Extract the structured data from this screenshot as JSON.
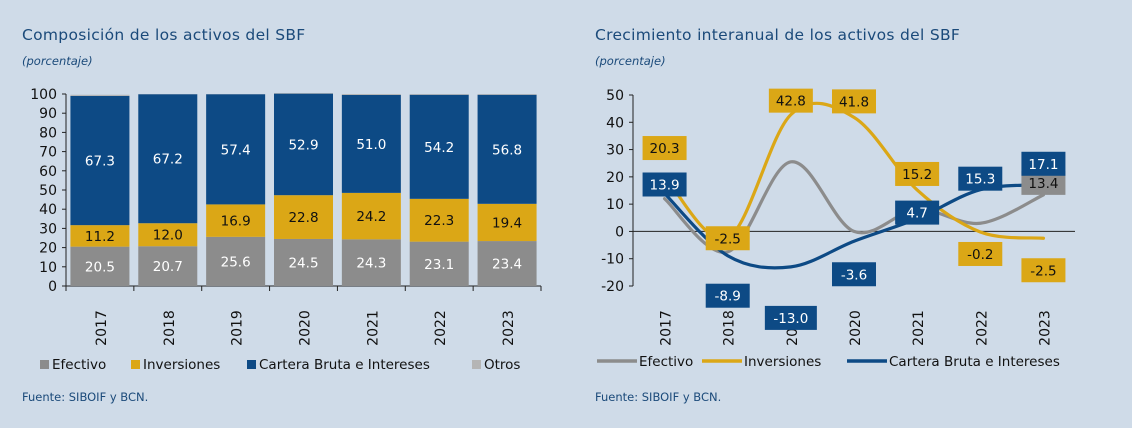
{
  "charts": {
    "left": {
      "title": "Composición de los activos del SBF",
      "subtitle": "(porcentaje)",
      "source": "Fuente: SIBOIF y BCN."
    },
    "right": {
      "title": "Crecimiento interanual de los activos del SBF",
      "subtitle": "(porcentaje)",
      "source": "Fuente: SIBOIF y BCN."
    }
  },
  "colors": {
    "efectivo": "#8c8c8c",
    "inversiones": "#dba716",
    "cartera": "#0d4a85",
    "otros": "#b5b5b5",
    "background": "#cfdbe8"
  },
  "chart_data": [
    {
      "type": "bar",
      "stacked": true,
      "title": "Composición de los activos del SBF",
      "subtitle": "(porcentaje)",
      "categories": [
        "2017",
        "2018",
        "2019",
        "2020",
        "2021",
        "2022",
        "2023"
      ],
      "series": [
        {
          "name": "Efectivo",
          "values": [
            20.5,
            20.7,
            25.6,
            24.5,
            24.3,
            23.1,
            23.4
          ],
          "color": "#8c8c8c"
        },
        {
          "name": "Inversiones",
          "values": [
            11.2,
            12.0,
            16.9,
            22.8,
            24.2,
            22.3,
            19.4
          ],
          "color": "#dba716"
        },
        {
          "name": "Cartera Bruta e Intereses",
          "values": [
            67.3,
            67.2,
            57.4,
            52.9,
            51.0,
            54.2,
            56.8
          ],
          "color": "#0d4a85"
        },
        {
          "name": "Otros",
          "values": [
            0.6,
            0.1,
            0.1,
            0.3,
            0.5,
            0.4,
            0.4
          ],
          "color": "#b5b5b5"
        }
      ],
      "ylim": [
        0,
        100
      ],
      "yticks": [
        0,
        10,
        20,
        30,
        40,
        50,
        60,
        70,
        80,
        90,
        100
      ],
      "legend": "bottom",
      "grid": false
    },
    {
      "type": "line",
      "title": "Crecimiento interanual de los activos del SBF",
      "subtitle": "(porcentaje)",
      "categories": [
        "2017",
        "2018",
        "2019",
        "2020",
        "2021",
        "2022",
        "2023"
      ],
      "series": [
        {
          "name": "Efectivo",
          "values": [
            12.0,
            -7.5,
            25.5,
            0.0,
            8.0,
            3.0,
            13.4
          ],
          "color": "#8c8c8c",
          "labels": [
            null,
            null,
            null,
            null,
            null,
            null,
            "13.4"
          ]
        },
        {
          "name": "Inversiones",
          "values": [
            20.3,
            -2.5,
            42.8,
            41.8,
            15.2,
            -0.2,
            -2.5
          ],
          "color": "#dba716",
          "labels": [
            "20.3",
            "-2.5",
            "42.8",
            "41.8",
            "15.2",
            "-0.2",
            "-2.5"
          ]
        },
        {
          "name": "Cartera Bruta e Intereses",
          "values": [
            13.9,
            -8.9,
            -13.0,
            -3.6,
            4.7,
            15.3,
            17.1
          ],
          "color": "#0d4a85",
          "labels": [
            "13.9",
            "-8.9",
            "-13.0",
            "-3.6",
            "4.7",
            "15.3",
            "17.1"
          ]
        }
      ],
      "ylim": [
        -20,
        50
      ],
      "yticks": [
        -20,
        -10,
        0,
        10,
        20,
        30,
        40,
        50
      ],
      "legend": "bottom",
      "grid": false
    }
  ]
}
